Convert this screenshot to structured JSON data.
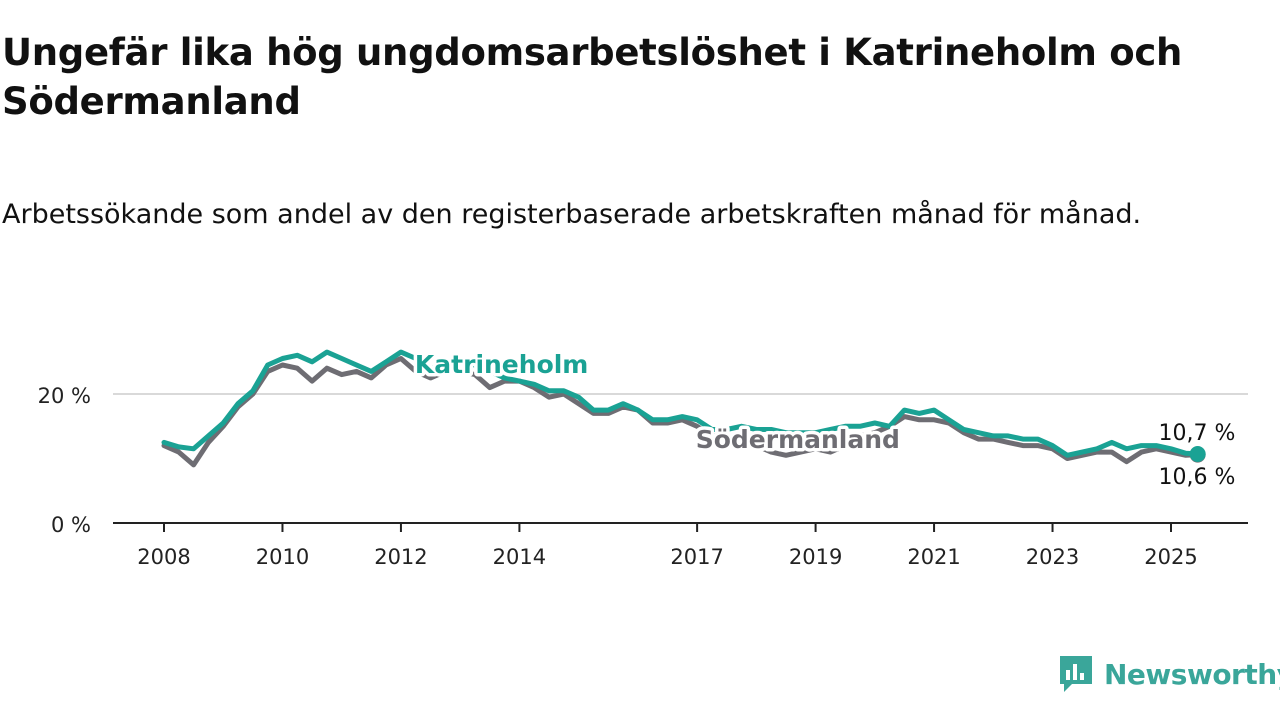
{
  "header": {
    "title": "Ungefär lika hög ungdomsarbetslöshet i Katrineholm och Södermanland",
    "subtitle": "Arbetssökande som andel av den registerbaserade arbetskraften månad för månad."
  },
  "brand": {
    "name": "Newsworthy",
    "icon": "bar-chart-badge-icon",
    "color": "#3aa69a"
  },
  "chart_data": {
    "type": "line",
    "title": "Ungefär lika hög ungdomsarbetslöshet i Katrineholm och Södermanland",
    "subtitle": "Arbetssökande som andel av den registerbaserade arbetskraften månad för månad.",
    "xlabel": "",
    "ylabel": "",
    "xlim": [
      2007.7,
      2026.4
    ],
    "ylim": [
      0,
      28
    ],
    "x_ticks": [
      2008,
      2010,
      2012,
      2014,
      2017,
      2019,
      2021,
      2023,
      2025
    ],
    "x_tick_labels": [
      "2008",
      "2010",
      "2012",
      "2014",
      "2017",
      "2019",
      "2021",
      "2023",
      "2025"
    ],
    "y_ticks": [
      0,
      20
    ],
    "y_tick_labels": [
      "0 %",
      "20 %"
    ],
    "grid": true,
    "legend": "direct-labels",
    "colors": {
      "Katrineholm": "#1aa294",
      "Södermanland": "#6e6d73"
    },
    "series": [
      {
        "name": "Katrineholm",
        "x": [
          2008.0,
          2008.25,
          2008.5,
          2008.75,
          2009.0,
          2009.25,
          2009.5,
          2009.75,
          2010.0,
          2010.25,
          2010.5,
          2010.75,
          2011.0,
          2011.25,
          2011.5,
          2011.75,
          2012.0,
          2012.25,
          2012.5,
          2012.75,
          2013.0,
          2013.25,
          2013.5,
          2013.75,
          2014.0,
          2014.25,
          2014.5,
          2014.75,
          2015.0,
          2015.25,
          2015.5,
          2015.75,
          2016.0,
          2016.25,
          2016.5,
          2016.75,
          2017.0,
          2017.25,
          2017.5,
          2017.75,
          2018.0,
          2018.25,
          2018.5,
          2018.75,
          2019.0,
          2019.25,
          2019.5,
          2019.75,
          2020.0,
          2020.25,
          2020.5,
          2020.75,
          2021.0,
          2021.25,
          2021.5,
          2021.75,
          2022.0,
          2022.25,
          2022.5,
          2022.75,
          2023.0,
          2023.25,
          2023.5,
          2023.75,
          2024.0,
          2024.25,
          2024.5,
          2024.75,
          2025.0,
          2025.25,
          2025.45
        ],
        "y": [
          12.5,
          11.8,
          11.5,
          13.5,
          15.5,
          18.5,
          20.5,
          24.5,
          25.5,
          26.0,
          25.0,
          26.5,
          25.5,
          24.5,
          23.5,
          25.0,
          26.5,
          25.5,
          24.0,
          24.5,
          25.0,
          24.5,
          23.5,
          22.5,
          22.0,
          21.5,
          20.5,
          20.5,
          19.5,
          17.5,
          17.5,
          18.5,
          17.5,
          16.0,
          16.0,
          16.5,
          16.0,
          14.5,
          14.5,
          15.0,
          14.5,
          14.5,
          14.0,
          14.0,
          14.0,
          14.5,
          15.0,
          15.0,
          15.5,
          15.0,
          17.5,
          17.0,
          17.5,
          16.0,
          14.5,
          14.0,
          13.5,
          13.5,
          13.0,
          13.0,
          12.0,
          10.5,
          11.0,
          11.5,
          12.5,
          11.5,
          12.0,
          12.0,
          11.5,
          10.8,
          10.7
        ]
      },
      {
        "name": "Södermanland",
        "x": [
          2008.0,
          2008.25,
          2008.5,
          2008.75,
          2009.0,
          2009.25,
          2009.5,
          2009.75,
          2010.0,
          2010.25,
          2010.5,
          2010.75,
          2011.0,
          2011.25,
          2011.5,
          2011.75,
          2012.0,
          2012.25,
          2012.5,
          2012.75,
          2013.0,
          2013.25,
          2013.5,
          2013.75,
          2014.0,
          2014.25,
          2014.5,
          2014.75,
          2015.0,
          2015.25,
          2015.5,
          2015.75,
          2016.0,
          2016.25,
          2016.5,
          2016.75,
          2017.0,
          2017.25,
          2017.5,
          2017.75,
          2018.0,
          2018.25,
          2018.5,
          2018.75,
          2019.0,
          2019.25,
          2019.5,
          2019.75,
          2020.0,
          2020.25,
          2020.5,
          2020.75,
          2021.0,
          2021.25,
          2021.5,
          2021.75,
          2022.0,
          2022.25,
          2022.5,
          2022.75,
          2023.0,
          2023.25,
          2023.5,
          2023.75,
          2024.0,
          2024.25,
          2024.5,
          2024.75,
          2025.0,
          2025.25,
          2025.45
        ],
        "y": [
          12.0,
          11.0,
          9.0,
          12.5,
          15.0,
          18.0,
          20.0,
          23.5,
          24.5,
          24.0,
          22.0,
          24.0,
          23.0,
          23.5,
          22.5,
          24.5,
          25.5,
          23.5,
          22.5,
          23.5,
          23.5,
          23.0,
          21.0,
          22.0,
          22.0,
          21.0,
          19.5,
          20.0,
          18.5,
          17.0,
          17.0,
          18.0,
          17.5,
          15.5,
          15.5,
          16.0,
          15.0,
          13.5,
          13.5,
          13.0,
          12.0,
          11.0,
          10.5,
          11.0,
          11.5,
          11.0,
          12.0,
          13.5,
          14.0,
          15.0,
          16.5,
          16.0,
          16.0,
          15.5,
          14.0,
          13.0,
          13.0,
          12.5,
          12.0,
          12.0,
          11.5,
          10.0,
          10.5,
          11.0,
          11.0,
          9.5,
          11.0,
          11.5,
          11.0,
          10.5,
          10.6
        ]
      }
    ],
    "annotations": [
      {
        "series": "Katrineholm",
        "text": "Katrineholm",
        "x": 2013.7,
        "y": 24.8
      },
      {
        "series": "Södermanland",
        "text": "Södermanland",
        "x": 2018.7,
        "y": 13.2
      },
      {
        "series": "Katrineholm",
        "text": "10,7 %",
        "x": 2025.45,
        "y": 10.7
      },
      {
        "series": "Södermanland",
        "text": "10,6 %",
        "x": 2025.45,
        "y": 10.6
      }
    ]
  }
}
